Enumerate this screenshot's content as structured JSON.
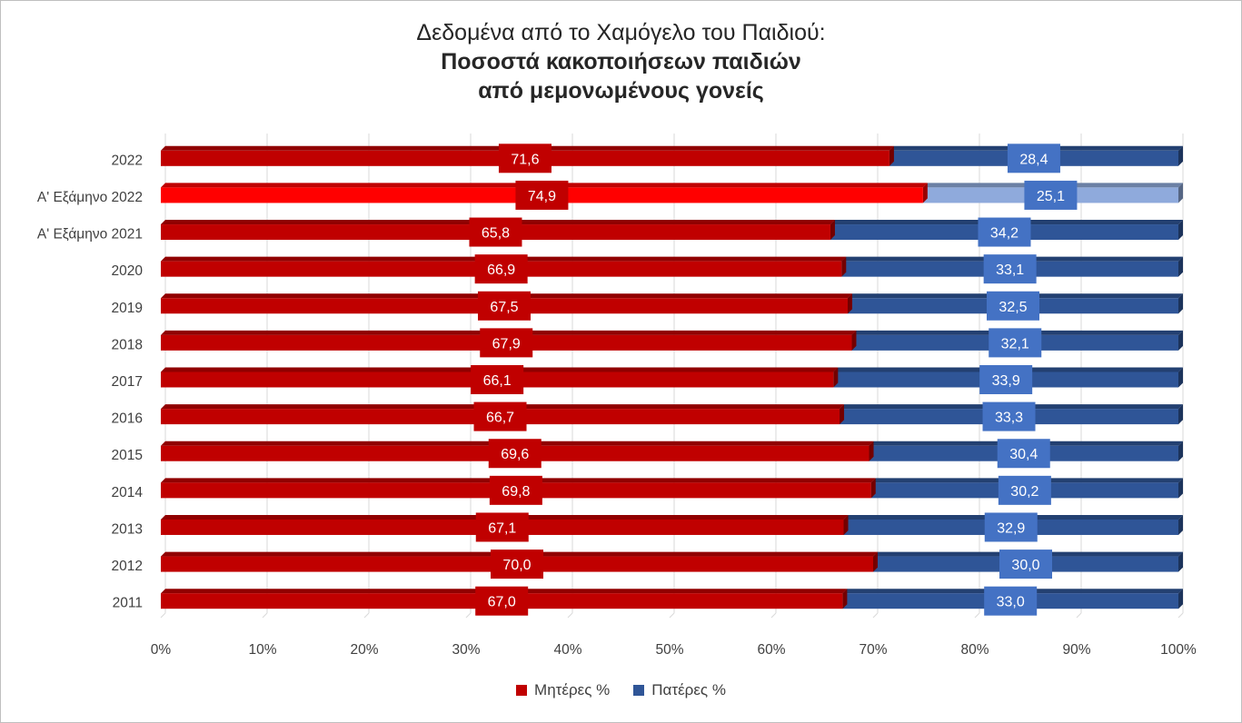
{
  "title": {
    "line1": "Δεδομένα από το Χαμόγελο του Παιδιού:",
    "line2": "Ποσοστά κακοποιήσεων παιδιών",
    "line3": "από μεμονωμένους γονείς"
  },
  "colors": {
    "mothers": "#C00000",
    "fathers": "#2F5597",
    "mothers_highlight": "#FF0000",
    "fathers_highlight": "#8FAADC"
  },
  "legend": {
    "mothers": "Μητέρες %",
    "fathers": "Πατέρες %"
  },
  "chart_data": {
    "type": "bar",
    "orientation": "horizontal",
    "stacked": "100%",
    "categories": [
      "2022",
      "Α' Εξάμηνο 2022",
      "Α' Εξάμηνο 2021",
      "2020",
      "2019",
      "2018",
      "2017",
      "2016",
      "2015",
      "2014",
      "2013",
      "2012",
      "2011"
    ],
    "highlighted_category": "Α' Εξάμηνο 2022",
    "series": [
      {
        "name": "Μητέρες %",
        "values": [
          71.6,
          74.9,
          65.8,
          66.9,
          67.5,
          67.9,
          66.1,
          66.7,
          69.6,
          69.8,
          67.1,
          70.0,
          67.0
        ],
        "labels": [
          "71,6",
          "74,9",
          "65,8",
          "66,9",
          "67,5",
          "67,9",
          "66,1",
          "66,7",
          "69,6",
          "69,8",
          "67,1",
          "70,0",
          "67,0"
        ]
      },
      {
        "name": "Πατέρες %",
        "values": [
          28.4,
          25.1,
          34.2,
          33.1,
          32.5,
          32.1,
          33.9,
          33.3,
          30.4,
          30.2,
          32.9,
          30.0,
          33.0
        ],
        "labels": [
          "28,4",
          "25,1",
          "34,2",
          "33,1",
          "32,5",
          "32,1",
          "33,9",
          "33,3",
          "30,4",
          "30,2",
          "32,9",
          "30,0",
          "33,0"
        ]
      }
    ],
    "x_ticks": [
      "0%",
      "10%",
      "20%",
      "30%",
      "40%",
      "50%",
      "60%",
      "70%",
      "80%",
      "90%",
      "100%"
    ],
    "xlim": [
      0,
      100
    ],
    "grid": "vertical",
    "legend_position": "bottom"
  }
}
